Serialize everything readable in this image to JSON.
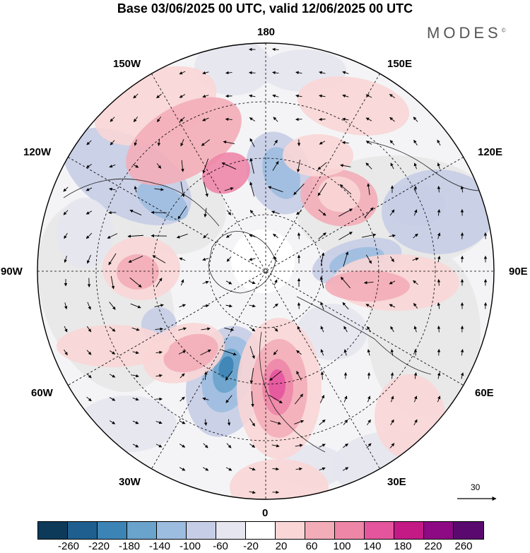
{
  "title": "Base 03/06/2025 00 UTC, valid 12/06/2025 00 UTC",
  "logo": "MODES",
  "logo_mark": "©",
  "longitude_labels": {
    "top": "180",
    "bottom": "0",
    "left": "90W",
    "right": "90E",
    "upper_left_1": "150W",
    "upper_left_2": "120W",
    "upper_right_1": "150E",
    "upper_right_2": "120E",
    "lower_left_1": "60W",
    "lower_left_2": "30W",
    "lower_right_1": "60E",
    "lower_right_2": "30E"
  },
  "reference_vector": "30",
  "colorbar": {
    "colors": [
      "#0e3a5a",
      "#1e5f8f",
      "#3c84b6",
      "#6aa3cc",
      "#9dbde0",
      "#c6cde6",
      "#e6e6f0",
      "#ffffff",
      "#fad6d6",
      "#f3adb8",
      "#ee86a8",
      "#e4559e",
      "#c41a86",
      "#8d0a84",
      "#5a0a6e"
    ],
    "labels": [
      "-260",
      "-220",
      "-180",
      "-140",
      "-100",
      "-60",
      "-20",
      "20",
      "60",
      "100",
      "140",
      "180",
      "220",
      "260"
    ]
  },
  "anomaly_colors": {
    "pos1": "#fad6d6",
    "pos2": "#f3adb8",
    "pos3": "#ee86a8",
    "pos4": "#e4559e",
    "neg1": "#e6e6f0",
    "neg2": "#c6cde6",
    "neg3": "#9dbde0",
    "neg4": "#6aa3cc",
    "neg5": "#3c84b6",
    "land": "#e8e8e8"
  }
}
